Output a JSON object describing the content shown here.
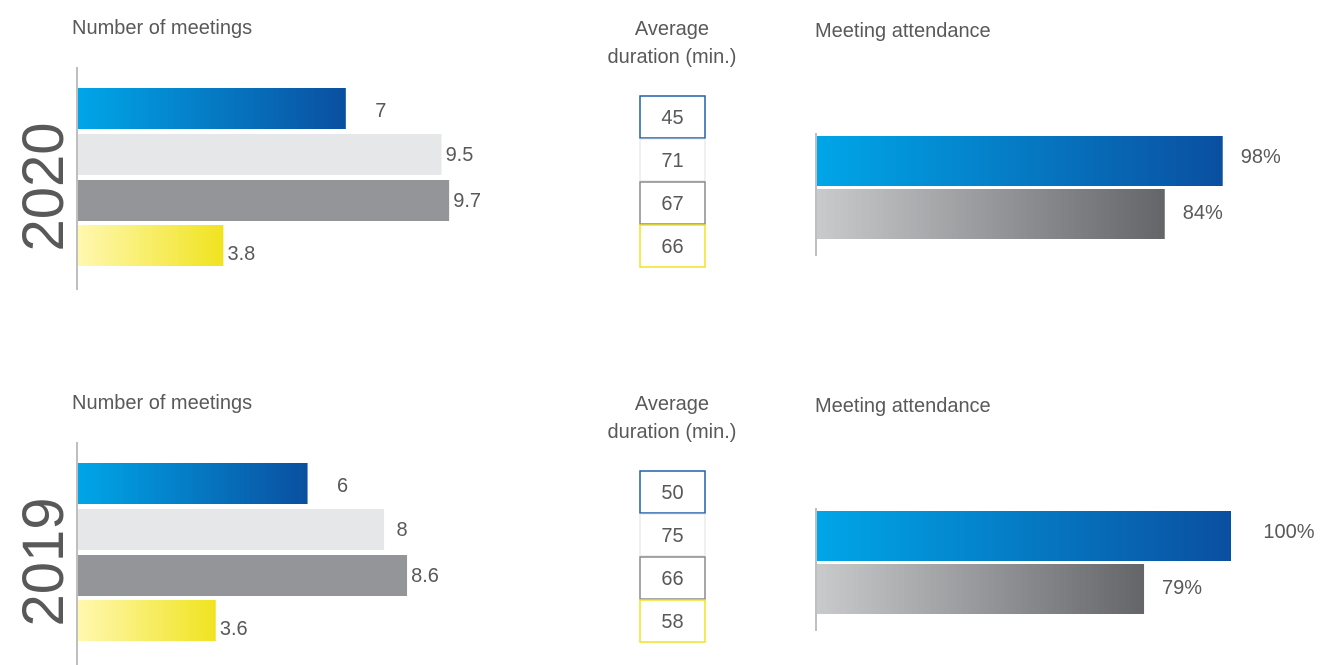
{
  "colors": {
    "text": "#595959",
    "axis": "#7f7f7f",
    "blue_start": "#00a6e8",
    "blue_end": "#0a4fa0",
    "light_gray": "#e6e7e8",
    "mid_gray": "#939598",
    "yellow_start": "#fff8b0",
    "yellow_end": "#f0e320",
    "gray_grad_start": "#c9cacc",
    "gray_grad_end": "#646569",
    "box_blue": "#1f5fa8",
    "box_light": "#e0e0e0",
    "box_gray": "#8a8a8a",
    "box_yellow": "#f0e320"
  },
  "chart_data": [
    {
      "type": "bar",
      "year": "2020",
      "title": "Number of meetings",
      "series": [
        "blue",
        "light_gray",
        "mid_gray",
        "yellow"
      ],
      "values": [
        7,
        9.5,
        9.7,
        3.8
      ],
      "labels": [
        "7",
        "9.5",
        "9.7",
        "3.8"
      ],
      "xlim": [
        0,
        11.5
      ]
    },
    {
      "type": "table",
      "year": "2020",
      "title": "Average duration (min.)",
      "title_lines": [
        "Average",
        "duration (min.)"
      ],
      "values": [
        45,
        71,
        67,
        66
      ]
    },
    {
      "type": "bar",
      "year": "2020",
      "title": "Meeting attendance",
      "values": [
        98,
        84
      ],
      "labels": [
        "98%",
        "84%"
      ],
      "xlim": [
        0,
        118
      ]
    },
    {
      "type": "bar",
      "year": "2019",
      "title": "Number of meetings",
      "series": [
        "blue",
        "light_gray",
        "mid_gray",
        "yellow"
      ],
      "values": [
        6,
        8,
        8.6,
        3.6
      ],
      "labels": [
        "6",
        "8",
        "8.6",
        "3.6"
      ],
      "xlim": [
        0,
        11.5
      ]
    },
    {
      "type": "table",
      "year": "2019",
      "title": "Average duration (min.)",
      "title_lines": [
        "Average",
        "duration (min.)"
      ],
      "values": [
        50,
        75,
        66,
        58
      ]
    },
    {
      "type": "bar",
      "year": "2019",
      "title": "Meeting attendance",
      "values": [
        100,
        79
      ],
      "labels": [
        "100%",
        "79%"
      ],
      "xlim": [
        0,
        118
      ]
    }
  ]
}
